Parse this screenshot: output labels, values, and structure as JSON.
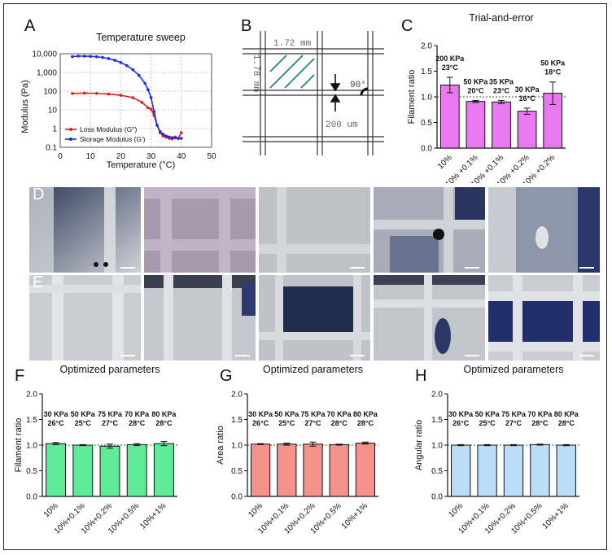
{
  "panel_labels": {
    "A": "A",
    "B": "B",
    "C": "C",
    "D": "D",
    "E": "E",
    "F": "F",
    "G": "G",
    "H": "H"
  },
  "panel_b": {
    "width_label": "1.72 mm",
    "height_label": "1.78 mm",
    "angle_label": "90°",
    "gap_label": "200 um"
  },
  "chart_data": [
    {
      "id": "A",
      "type": "line",
      "title": "Temperature sweep",
      "xlabel": "Temperature (°C)",
      "ylabel": "Modulus (Pa)",
      "xlim": [
        0,
        50
      ],
      "ylim": [
        0.1,
        10000
      ],
      "yscale": "log",
      "xticks": [
        "0",
        "10",
        "20",
        "30",
        "40",
        "50"
      ],
      "yticks": [
        "0.1",
        "1",
        "10",
        "100",
        "1,000",
        "10,000"
      ],
      "grid": true,
      "legend_position": "bottom-left",
      "series": [
        {
          "name": "Loss Modulus (G'')",
          "color": "#e0201c",
          "x": [
            4,
            8,
            12,
            16,
            20,
            24,
            27,
            29,
            30,
            31,
            32,
            33,
            34,
            35,
            36,
            37,
            38,
            39,
            40
          ],
          "y": [
            75,
            78,
            76,
            70,
            60,
            45,
            25,
            13,
            11,
            5,
            1.5,
            0.6,
            0.4,
            0.35,
            0.3,
            0.28,
            0.35,
            0.3,
            0.6
          ]
        },
        {
          "name": "Storage Modulus (G')",
          "color": "#1c2fd8",
          "x": [
            4,
            6,
            8,
            10,
            12,
            14,
            16,
            18,
            20,
            22,
            24,
            26,
            28,
            29,
            30,
            31,
            32,
            33,
            34,
            35,
            36,
            37,
            38,
            39,
            40
          ],
          "y": [
            7000,
            7500,
            7400,
            7200,
            6900,
            6300,
            5500,
            4500,
            3400,
            2300,
            1400,
            700,
            260,
            120,
            45,
            8,
            1.5,
            0.7,
            0.5,
            0.4,
            0.35,
            0.33,
            0.32,
            0.3,
            0.3
          ]
        }
      ]
    },
    {
      "id": "C",
      "type": "bar",
      "title": "Trial-and-error",
      "ylabel": "Filament ratio",
      "ylim": [
        0,
        2.0
      ],
      "yticks": [
        "0.0",
        "0.5",
        "1.0",
        "1.5",
        "2.0"
      ],
      "bar_color": "#e879f0",
      "categories": [
        "10%",
        "10% +0.1%",
        "10% +0.1%",
        "10% +0.2%",
        "10% +0.2%"
      ],
      "values": [
        1.23,
        0.91,
        0.9,
        0.72,
        1.07
      ],
      "errors": [
        0.15,
        0.02,
        0.03,
        0.06,
        0.22
      ],
      "annotations": [
        [
          "200 KPa",
          "23°C"
        ],
        [
          "50 KPa",
          "20°C"
        ],
        [
          "35 KPa",
          "23°C"
        ],
        [
          "30 KPa",
          "16°C"
        ],
        [
          "50 KPa",
          "18°C"
        ]
      ]
    },
    {
      "id": "F",
      "type": "bar",
      "title": "Optimized parameters",
      "ylabel": "Filament ratio",
      "ylim": [
        0,
        2.0
      ],
      "yticks": [
        "0.0",
        "0.5",
        "1.0",
        "1.5",
        "2.0"
      ],
      "bar_color": "#5eec98",
      "categories": [
        "10%",
        "10%+0.1%",
        "10%+0.2%",
        "10%+0.5%",
        "10%+1%"
      ],
      "values": [
        1.03,
        1.0,
        0.98,
        1.01,
        1.03
      ],
      "errors": [
        0.02,
        0.01,
        0.04,
        0.02,
        0.04
      ],
      "annotations": [
        [
          "30 KPa",
          "26°C"
        ],
        [
          "50 KPa",
          "25°C"
        ],
        [
          "75 KPa",
          "27°C"
        ],
        [
          "70 KPa",
          "28°C"
        ],
        [
          "80 KPa",
          "28°C"
        ]
      ]
    },
    {
      "id": "G",
      "type": "bar",
      "title": "Optimized parameters",
      "ylabel": "Area ratio",
      "ylim": [
        0,
        2.0
      ],
      "yticks": [
        "0.0",
        "0.5",
        "1.0",
        "1.5",
        "2.0"
      ],
      "bar_color": "#f4938c",
      "categories": [
        "10%",
        "10%+0.1%",
        "10%+0.2%",
        "10%+0.5%",
        "10%+1%"
      ],
      "values": [
        1.02,
        1.02,
        1.02,
        1.01,
        1.04
      ],
      "errors": [
        0.01,
        0.02,
        0.04,
        0.01,
        0.02
      ],
      "annotations": [
        [
          "30 KPa",
          "26°C"
        ],
        [
          "50 KPa",
          "25°C"
        ],
        [
          "75 KPa",
          "27°C"
        ],
        [
          "70 KPa",
          "28°C"
        ],
        [
          "80 KPa",
          "28°C"
        ]
      ]
    },
    {
      "id": "H",
      "type": "bar",
      "title": "Optimized parameters",
      "ylabel": "Angular ratio",
      "ylim": [
        0,
        2.0
      ],
      "yticks": [
        "0.0",
        "0.5",
        "1.0",
        "1.5",
        "2.0"
      ],
      "bar_color": "#b9dcf7",
      "categories": [
        "10%",
        "10%+0.1%",
        "10%+0.2%",
        "10%+0.5%",
        "10%+1%"
      ],
      "values": [
        1.0,
        1.0,
        1.0,
        1.01,
        1.0
      ],
      "errors": [
        0.01,
        0.01,
        0.01,
        0.01,
        0.01
      ],
      "annotations": [
        [
          "30 KPa",
          "26°C"
        ],
        [
          "50 KPa",
          "25°C"
        ],
        [
          "75 KPa",
          "27°C"
        ],
        [
          "70 KPa",
          "28°C"
        ],
        [
          "80 KPa",
          "28°C"
        ]
      ]
    }
  ]
}
